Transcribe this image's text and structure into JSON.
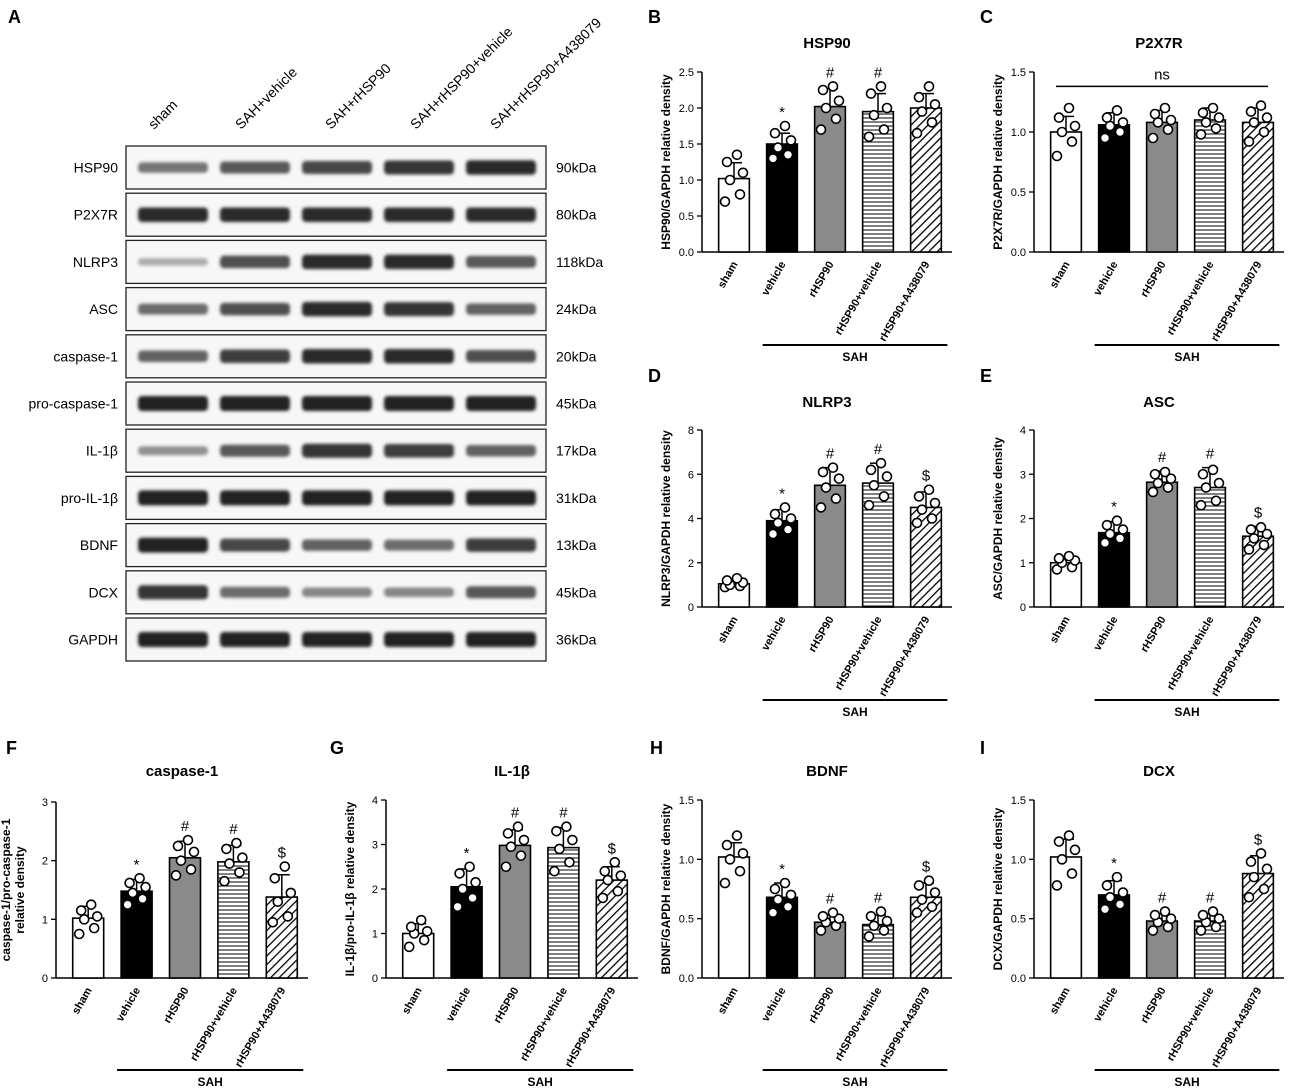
{
  "blot": {
    "panel_label": "A",
    "lanes": [
      "sham",
      "SAH+vehicle",
      "SAH+rHSP90",
      "SAH+rHSP90+vehicle",
      "SAH+rHSP90+A438079"
    ],
    "rows": [
      {
        "protein": "HSP90",
        "size": "90kDa",
        "intensity": [
          0.45,
          0.6,
          0.7,
          0.8,
          0.85
        ]
      },
      {
        "protein": "P2X7R",
        "size": "80kDa",
        "intensity": [
          0.85,
          0.85,
          0.85,
          0.85,
          0.85
        ]
      },
      {
        "protein": "NLRP3",
        "size": "118kDa",
        "intensity": [
          0.15,
          0.65,
          0.85,
          0.85,
          0.6
        ]
      },
      {
        "protein": "ASC",
        "size": "24kDa",
        "intensity": [
          0.5,
          0.65,
          0.85,
          0.8,
          0.55
        ]
      },
      {
        "protein": "caspase-1",
        "size": "20kDa",
        "intensity": [
          0.55,
          0.75,
          0.85,
          0.85,
          0.65
        ]
      },
      {
        "protein": "pro-caspase-1",
        "size": "45kDa",
        "intensity": [
          0.9,
          0.9,
          0.9,
          0.9,
          0.9
        ]
      },
      {
        "protein": "IL-1β",
        "size": "17kDa",
        "intensity": [
          0.3,
          0.6,
          0.8,
          0.75,
          0.55
        ]
      },
      {
        "protein": "pro-IL-1β",
        "size": "31kDa",
        "intensity": [
          0.9,
          0.9,
          0.9,
          0.9,
          0.9
        ]
      },
      {
        "protein": "BDNF",
        "size": "13kDa",
        "intensity": [
          0.9,
          0.7,
          0.55,
          0.5,
          0.75
        ]
      },
      {
        "protein": "DCX",
        "size": "45kDa",
        "intensity": [
          0.8,
          0.5,
          0.35,
          0.35,
          0.6
        ]
      },
      {
        "protein": "GAPDH",
        "size": "36kDa",
        "intensity": [
          0.9,
          0.9,
          0.9,
          0.9,
          0.9
        ]
      }
    ]
  },
  "chart_data": [
    {
      "panel": "B",
      "type": "bar",
      "title": "HSP90",
      "ylabel": "HSP90/GAPDH relative density",
      "ylim": [
        0,
        2.5
      ],
      "yticks": [
        "0.0",
        "0.5",
        "1.0",
        "1.5",
        "2.0",
        "2.5"
      ],
      "categories": [
        "sham",
        "vehicle",
        "rHSP90",
        "rHSP90+vehicle",
        "rHSP90+A438079"
      ],
      "values": [
        1.02,
        1.5,
        2.02,
        1.95,
        2.0
      ],
      "errors": [
        0.22,
        0.15,
        0.25,
        0.25,
        0.2
      ],
      "points": [
        [
          0.7,
          0.8,
          1.0,
          1.1,
          1.25,
          1.35
        ],
        [
          1.3,
          1.35,
          1.45,
          1.55,
          1.65,
          1.75
        ],
        [
          1.7,
          1.85,
          2.0,
          2.1,
          2.25,
          2.3
        ],
        [
          1.6,
          1.7,
          1.9,
          2.0,
          2.2,
          2.3
        ],
        [
          1.65,
          1.8,
          1.95,
          2.05,
          2.15,
          2.3
        ]
      ],
      "significance": [
        "",
        "*",
        "#",
        "#",
        ""
      ],
      "group_label": "SAH",
      "group_span": [
        1,
        4
      ],
      "ns_label": ""
    },
    {
      "panel": "C",
      "type": "bar",
      "title": "P2X7R",
      "ylabel": "P2X7R/GAPDH relative density",
      "ylim": [
        0,
        1.5
      ],
      "yticks": [
        "0.0",
        "0.5",
        "1.0",
        "1.5"
      ],
      "categories": [
        "sham",
        "vehicle",
        "rHSP90",
        "rHSP90+vehicle",
        "rHSP90+A438079"
      ],
      "values": [
        1.0,
        1.06,
        1.08,
        1.1,
        1.08
      ],
      "errors": [
        0.13,
        0.1,
        0.1,
        0.1,
        0.12
      ],
      "points": [
        [
          0.8,
          0.92,
          1.0,
          1.05,
          1.12,
          1.2
        ],
        [
          0.95,
          1.0,
          1.05,
          1.08,
          1.12,
          1.18
        ],
        [
          0.95,
          1.02,
          1.08,
          1.1,
          1.15,
          1.2
        ],
        [
          0.98,
          1.03,
          1.08,
          1.12,
          1.16,
          1.2
        ],
        [
          0.92,
          1.0,
          1.08,
          1.12,
          1.17,
          1.22
        ]
      ],
      "significance": [
        "",
        "",
        "",
        "",
        ""
      ],
      "group_label": "SAH",
      "group_span": [
        1,
        4
      ],
      "ns_label": "ns"
    },
    {
      "panel": "D",
      "type": "bar",
      "title": "NLRP3",
      "ylabel": "NLRP3/GAPDH relative density",
      "ylim": [
        0,
        8
      ],
      "yticks": [
        "0",
        "2",
        "4",
        "6",
        "8"
      ],
      "categories": [
        "sham",
        "vehicle",
        "rHSP90",
        "rHSP90+vehicle",
        "rHSP90+A438079"
      ],
      "values": [
        1.05,
        3.9,
        5.5,
        5.6,
        4.5
      ],
      "errors": [
        0.2,
        0.5,
        0.8,
        0.9,
        0.7
      ],
      "points": [
        [
          0.9,
          0.95,
          1.0,
          1.1,
          1.2,
          1.3
        ],
        [
          3.3,
          3.5,
          3.8,
          4.0,
          4.2,
          4.5
        ],
        [
          4.5,
          4.9,
          5.4,
          5.8,
          6.1,
          6.3
        ],
        [
          4.6,
          5.0,
          5.5,
          5.9,
          6.2,
          6.5
        ],
        [
          3.8,
          4.0,
          4.4,
          4.7,
          5.0,
          5.3
        ]
      ],
      "significance": [
        "",
        "*",
        "#",
        "#",
        "$"
      ],
      "group_label": "SAH",
      "group_span": [
        1,
        4
      ],
      "ns_label": ""
    },
    {
      "panel": "E",
      "type": "bar",
      "title": "ASC",
      "ylabel": "ASC/GAPDH relative density",
      "ylim": [
        0,
        4
      ],
      "yticks": [
        "0",
        "1",
        "2",
        "3",
        "4"
      ],
      "categories": [
        "sham",
        "vehicle",
        "rHSP90",
        "rHSP90+vehicle",
        "rHSP90+A438079"
      ],
      "values": [
        1.0,
        1.68,
        2.82,
        2.7,
        1.6
      ],
      "errors": [
        0.1,
        0.25,
        0.25,
        0.45,
        0.22
      ],
      "points": [
        [
          0.85,
          0.9,
          1.0,
          1.05,
          1.1,
          1.15
        ],
        [
          1.45,
          1.55,
          1.65,
          1.75,
          1.85,
          1.95
        ],
        [
          2.6,
          2.7,
          2.8,
          2.9,
          3.0,
          3.05
        ],
        [
          2.3,
          2.4,
          2.7,
          2.8,
          3.0,
          3.1
        ],
        [
          1.3,
          1.4,
          1.55,
          1.65,
          1.75,
          1.8
        ]
      ],
      "significance": [
        "",
        "*",
        "#",
        "#",
        "$"
      ],
      "group_label": "SAH",
      "group_span": [
        1,
        4
      ],
      "ns_label": ""
    },
    {
      "panel": "F",
      "type": "bar",
      "title": "caspase-1",
      "ylabel": "caspase-1/pro-caspase-1 relative density",
      "ylim": [
        0,
        3
      ],
      "yticks": [
        "0",
        "1",
        "2",
        "3"
      ],
      "categories": [
        "sham",
        "vehicle",
        "rHSP90",
        "rHSP90+vehicle",
        "rHSP90+A438079"
      ],
      "values": [
        1.02,
        1.48,
        2.05,
        1.98,
        1.38
      ],
      "errors": [
        0.2,
        0.2,
        0.28,
        0.28,
        0.38
      ],
      "points": [
        [
          0.75,
          0.85,
          1.0,
          1.05,
          1.15,
          1.25
        ],
        [
          1.25,
          1.35,
          1.45,
          1.55,
          1.62,
          1.7
        ],
        [
          1.75,
          1.85,
          2.0,
          2.15,
          2.25,
          2.35
        ],
        [
          1.65,
          1.8,
          1.95,
          2.05,
          2.2,
          2.3
        ],
        [
          0.95,
          1.05,
          1.3,
          1.45,
          1.7,
          1.9
        ]
      ],
      "significance": [
        "",
        "*",
        "#",
        "#",
        "$"
      ],
      "group_label": "SAH",
      "group_span": [
        1,
        4
      ],
      "ns_label": ""
    },
    {
      "panel": "G",
      "type": "bar",
      "title": "IL-1β",
      "ylabel": "IL-1β/pro-IL-1β relative density",
      "ylim": [
        0,
        4
      ],
      "yticks": [
        "0",
        "1",
        "2",
        "3",
        "4"
      ],
      "categories": [
        "sham",
        "vehicle",
        "rHSP90",
        "rHSP90+vehicle",
        "rHSP90+A438079"
      ],
      "values": [
        1.0,
        2.05,
        2.98,
        2.93,
        2.2
      ],
      "errors": [
        0.22,
        0.4,
        0.35,
        0.45,
        0.3
      ],
      "points": [
        [
          0.7,
          0.85,
          1.0,
          1.05,
          1.15,
          1.3
        ],
        [
          1.6,
          1.8,
          2.0,
          2.15,
          2.35,
          2.5
        ],
        [
          2.5,
          2.75,
          2.95,
          3.1,
          3.25,
          3.4
        ],
        [
          2.4,
          2.6,
          2.9,
          3.1,
          3.3,
          3.4
        ],
        [
          1.8,
          1.95,
          2.2,
          2.3,
          2.4,
          2.6
        ]
      ],
      "significance": [
        "",
        "*",
        "#",
        "#",
        "$"
      ],
      "group_label": "SAH",
      "group_span": [
        1,
        4
      ],
      "ns_label": ""
    },
    {
      "panel": "H",
      "type": "bar",
      "title": "BDNF",
      "ylabel": "BDNF/GAPDH relative density",
      "ylim": [
        0,
        1.5
      ],
      "yticks": [
        "0.0",
        "0.5",
        "1.0",
        "1.5"
      ],
      "categories": [
        "sham",
        "vehicle",
        "rHSP90",
        "rHSP90+vehicle",
        "rHSP90+A438079"
      ],
      "values": [
        1.02,
        0.68,
        0.47,
        0.45,
        0.68
      ],
      "errors": [
        0.12,
        0.12,
        0.06,
        0.08,
        0.12
      ],
      "points": [
        [
          0.8,
          0.9,
          1.0,
          1.05,
          1.12,
          1.2
        ],
        [
          0.55,
          0.6,
          0.66,
          0.7,
          0.75,
          0.8
        ],
        [
          0.4,
          0.44,
          0.47,
          0.5,
          0.52,
          0.55
        ],
        [
          0.35,
          0.4,
          0.44,
          0.48,
          0.52,
          0.56
        ],
        [
          0.55,
          0.6,
          0.66,
          0.72,
          0.78,
          0.82
        ]
      ],
      "significance": [
        "",
        "*",
        "#",
        "#",
        "$"
      ],
      "group_label": "SAH",
      "group_span": [
        1,
        4
      ],
      "ns_label": ""
    },
    {
      "panel": "I",
      "type": "bar",
      "title": "DCX",
      "ylabel": "DCX/GAPDH relative density",
      "ylim": [
        0,
        1.5
      ],
      "yticks": [
        "0.0",
        "0.5",
        "1.0",
        "1.5"
      ],
      "categories": [
        "sham",
        "vehicle",
        "rHSP90",
        "rHSP90+vehicle",
        "rHSP90+A438079"
      ],
      "values": [
        1.02,
        0.7,
        0.48,
        0.48,
        0.88
      ],
      "errors": [
        0.15,
        0.12,
        0.06,
        0.06,
        0.15
      ],
      "points": [
        [
          0.78,
          0.88,
          1.0,
          1.08,
          1.15,
          1.2
        ],
        [
          0.58,
          0.62,
          0.68,
          0.72,
          0.78,
          0.85
        ],
        [
          0.4,
          0.43,
          0.47,
          0.5,
          0.53,
          0.56
        ],
        [
          0.4,
          0.43,
          0.47,
          0.5,
          0.53,
          0.56
        ],
        [
          0.68,
          0.75,
          0.85,
          0.92,
          0.98,
          1.05
        ]
      ],
      "significance": [
        "",
        "*",
        "#",
        "#",
        "$"
      ],
      "group_label": "SAH",
      "group_span": [
        1,
        4
      ],
      "ns_label": ""
    }
  ]
}
